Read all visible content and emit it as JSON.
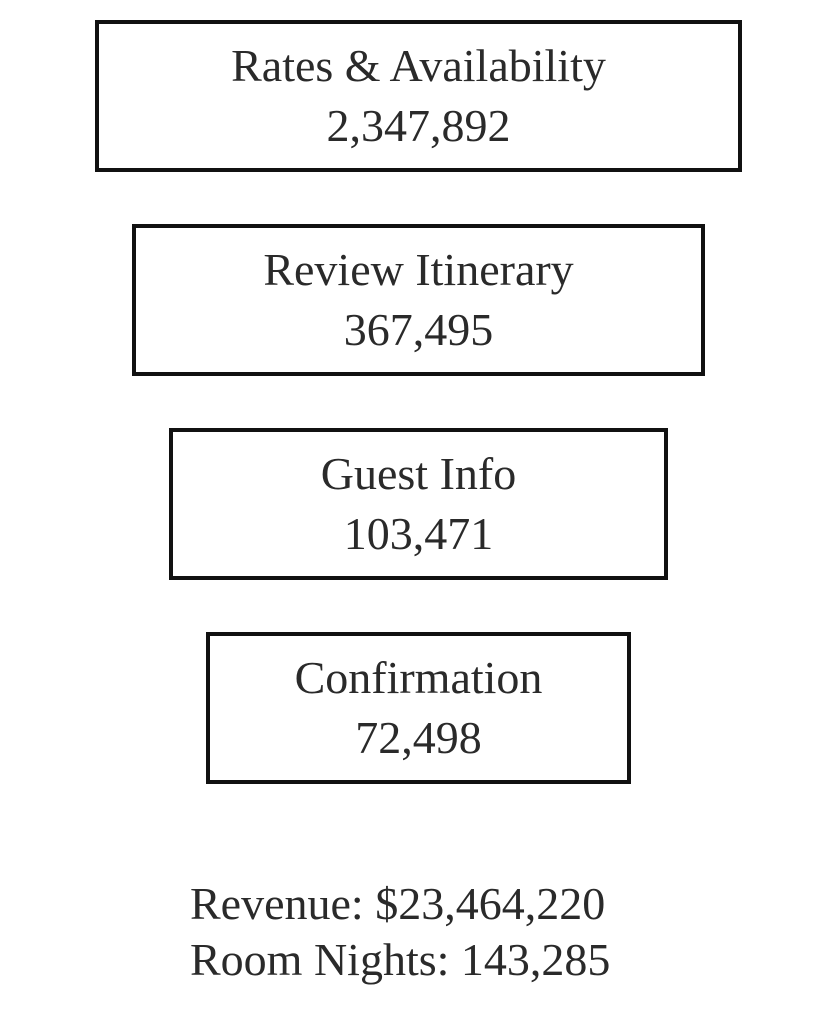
{
  "funnel": {
    "stages": [
      {
        "label": "Rates & Availability",
        "count": "2,347,892"
      },
      {
        "label": "Review Itinerary",
        "count": "367,495"
      },
      {
        "label": "Guest Info",
        "count": "103,471"
      },
      {
        "label": "Confirmation",
        "count": "72,498"
      }
    ]
  },
  "summary": {
    "revenue": "Revenue: $23,464,220",
    "room_nights": "Room Nights: 143,285"
  }
}
